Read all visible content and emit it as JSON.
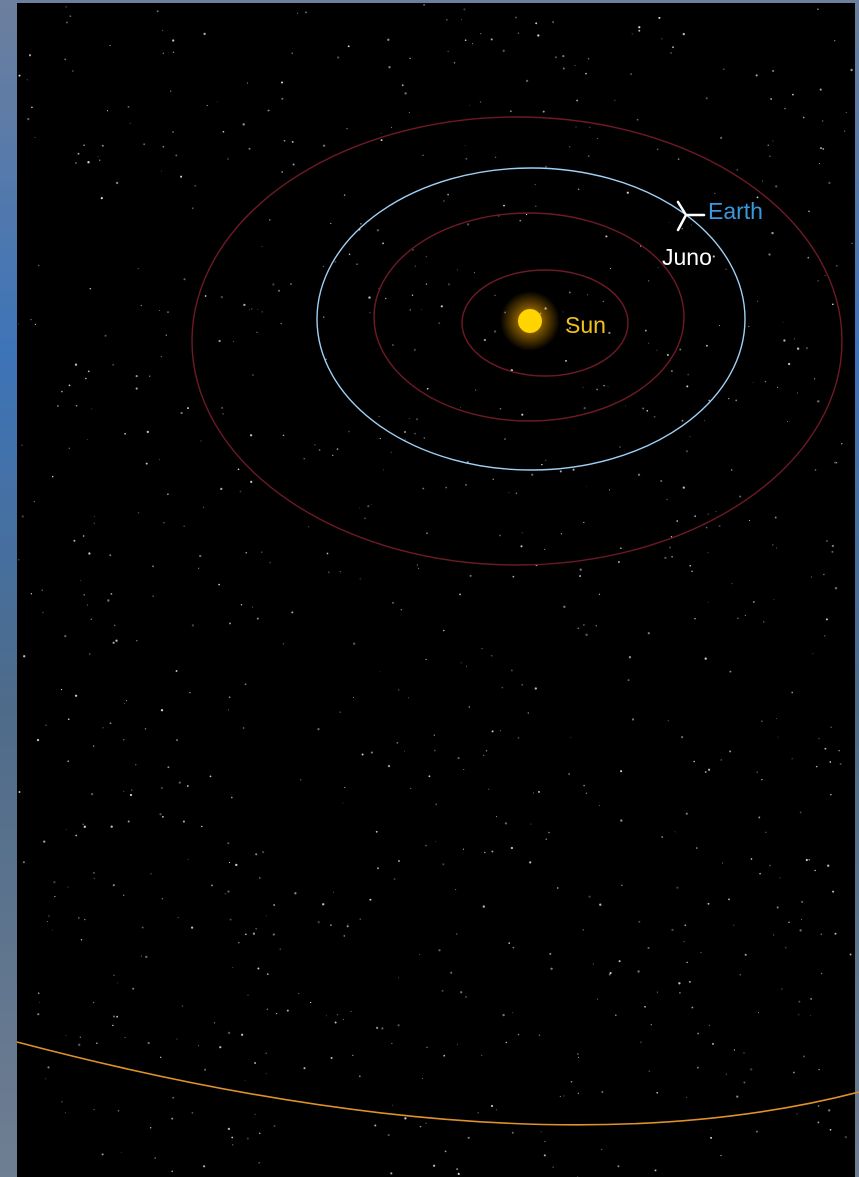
{
  "labels": {
    "sun": "Sun",
    "earth": "Earth",
    "spacecraft": "Juno"
  }
}
